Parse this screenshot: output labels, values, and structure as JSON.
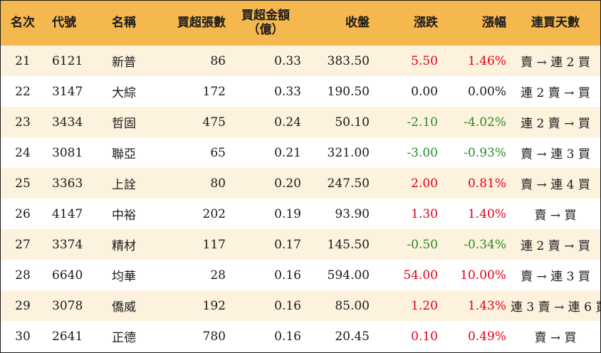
{
  "headers": {
    "rank": "名次",
    "code": "代號",
    "name": "名稱",
    "net_buy_lots": "買超張數",
    "net_buy_amount_line1": "買超金額",
    "net_buy_amount_line2": "（億）",
    "close": "收盤",
    "change": "漲跌",
    "change_pct": "漲幅",
    "streak": "連買天數"
  },
  "colors": {
    "header_bg": "#f5b84f",
    "row_alt_bg": "#fdf2dd",
    "up": "#e0001b",
    "down": "#2a8a2a",
    "flat": "#1a1a1a"
  },
  "rows": [
    {
      "rank": "21",
      "code": "6121",
      "name": "新普",
      "lots": "86",
      "amount": "0.33",
      "close": "383.50",
      "change": "5.50",
      "pct": "1.46%",
      "dir": "up",
      "streak": "賣 → 連 2 買"
    },
    {
      "rank": "22",
      "code": "3147",
      "name": "大綜",
      "lots": "172",
      "amount": "0.33",
      "close": "190.50",
      "change": "0.00",
      "pct": "0.00%",
      "dir": "flat",
      "streak": "連 2 賣 → 買"
    },
    {
      "rank": "23",
      "code": "3434",
      "name": "哲固",
      "lots": "475",
      "amount": "0.24",
      "close": "50.10",
      "change": "-2.10",
      "pct": "-4.02%",
      "dir": "down",
      "streak": "連 2 賣 → 買"
    },
    {
      "rank": "24",
      "code": "3081",
      "name": "聯亞",
      "lots": "65",
      "amount": "0.21",
      "close": "321.00",
      "change": "-3.00",
      "pct": "-0.93%",
      "dir": "down",
      "streak": "賣 → 連 3 買"
    },
    {
      "rank": "25",
      "code": "3363",
      "name": "上詮",
      "lots": "80",
      "amount": "0.20",
      "close": "247.50",
      "change": "2.00",
      "pct": "0.81%",
      "dir": "up",
      "streak": "賣 → 連 4 買"
    },
    {
      "rank": "26",
      "code": "4147",
      "name": "中裕",
      "lots": "202",
      "amount": "0.19",
      "close": "93.90",
      "change": "1.30",
      "pct": "1.40%",
      "dir": "up",
      "streak": "賣 → 買"
    },
    {
      "rank": "27",
      "code": "3374",
      "name": "精材",
      "lots": "117",
      "amount": "0.17",
      "close": "145.50",
      "change": "-0.50",
      "pct": "-0.34%",
      "dir": "down",
      "streak": "連 2 賣 → 買"
    },
    {
      "rank": "28",
      "code": "6640",
      "name": "均華",
      "lots": "28",
      "amount": "0.16",
      "close": "594.00",
      "change": "54.00",
      "pct": "10.00%",
      "dir": "up",
      "streak": "賣 → 連 3 買"
    },
    {
      "rank": "29",
      "code": "3078",
      "name": "僑威",
      "lots": "192",
      "amount": "0.16",
      "close": "85.00",
      "change": "1.20",
      "pct": "1.43%",
      "dir": "up",
      "streak": "連 3 賣 → 連 6 買"
    },
    {
      "rank": "30",
      "code": "2641",
      "name": "正德",
      "lots": "780",
      "amount": "0.16",
      "close": "20.45",
      "change": "0.10",
      "pct": "0.49%",
      "dir": "up",
      "streak": "賣 → 買"
    }
  ]
}
